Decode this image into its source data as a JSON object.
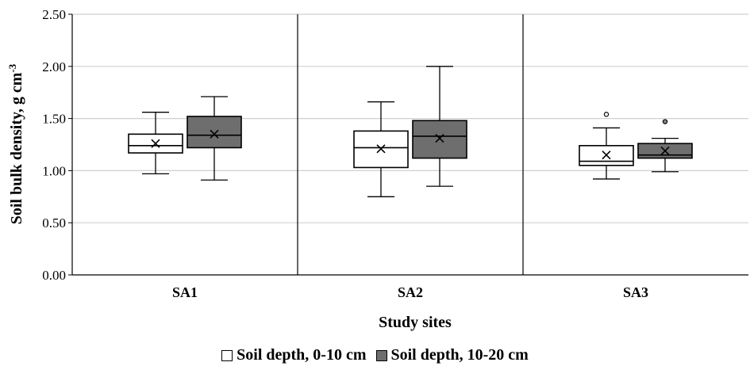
{
  "chart_data": {
    "type": "box",
    "ylabel": "Soil bulk density, g cm",
    "ylabel_sup": "-3",
    "xlabel": "Study sites",
    "ylim": [
      0,
      2.5
    ],
    "yticks": [
      "0.00",
      "0.50",
      "1.00",
      "1.50",
      "2.00",
      "2.50"
    ],
    "grid": true,
    "categories": [
      "SA1",
      "SA2",
      "SA3"
    ],
    "legend_position": "bottom",
    "series": [
      {
        "name": "Soil depth, 0-10 cm",
        "color": "#ffffff",
        "boxes": [
          {
            "min": 0.97,
            "q1": 1.17,
            "median": 1.24,
            "q3": 1.35,
            "max": 1.56,
            "mean": 1.26,
            "outliers": []
          },
          {
            "min": 0.75,
            "q1": 1.03,
            "median": 1.22,
            "q3": 1.38,
            "max": 1.66,
            "mean": 1.21,
            "outliers": []
          },
          {
            "min": 0.92,
            "q1": 1.05,
            "median": 1.09,
            "q3": 1.24,
            "max": 1.41,
            "mean": 1.15,
            "outliers": [
              1.54
            ]
          }
        ]
      },
      {
        "name": "Soil depth, 10-20 cm",
        "color": "#6e6e6e",
        "boxes": [
          {
            "min": 0.91,
            "q1": 1.22,
            "median": 1.34,
            "q3": 1.52,
            "max": 1.71,
            "mean": 1.35,
            "outliers": []
          },
          {
            "min": 0.85,
            "q1": 1.12,
            "median": 1.33,
            "q3": 1.48,
            "max": 2.0,
            "mean": 1.31,
            "outliers": []
          },
          {
            "min": 0.99,
            "q1": 1.12,
            "median": 1.15,
            "q3": 1.26,
            "max": 1.31,
            "mean": 1.19,
            "outliers": [
              1.47
            ]
          }
        ]
      }
    ]
  }
}
